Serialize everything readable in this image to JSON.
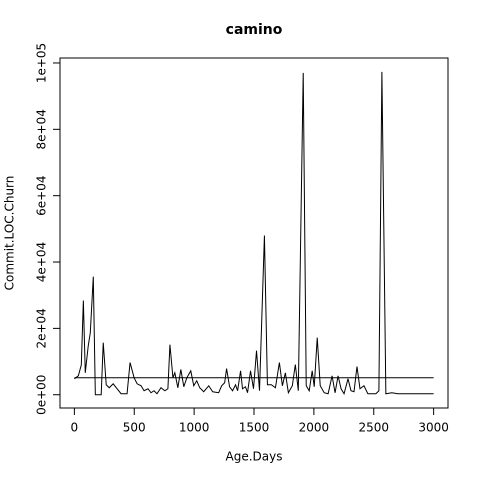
{
  "chart_data": {
    "type": "line",
    "title": "camino",
    "xlabel": "Age.Days",
    "ylabel": "Commit.LOC.Churn",
    "x": [
      0,
      33,
      58,
      75,
      91,
      116,
      133,
      158,
      175,
      224,
      241,
      266,
      291,
      324,
      357,
      390,
      440,
      465,
      499,
      524,
      557,
      582,
      615,
      640,
      665,
      690,
      723,
      756,
      781,
      798,
      823,
      839,
      864,
      889,
      914,
      939,
      972,
      997,
      1022,
      1047,
      1080,
      1122,
      1155,
      1205,
      1230,
      1255,
      1271,
      1296,
      1321,
      1346,
      1363,
      1388,
      1404,
      1429,
      1446,
      1471,
      1496,
      1521,
      1546,
      1587,
      1612,
      1645,
      1679,
      1712,
      1737,
      1762,
      1787,
      1820,
      1845,
      1870,
      1911,
      1936,
      1961,
      1986,
      2003,
      2028,
      2053,
      2086,
      2119,
      2152,
      2177,
      2202,
      2227,
      2252,
      2285,
      2310,
      2335,
      2360,
      2385,
      2418,
      2451,
      2518,
      2543,
      2568,
      2601,
      2651,
      2701,
      3000
    ],
    "series": [
      {
        "name": "Commit.LOC.Churn",
        "color": "#000000",
        "values": [
          4800,
          5700,
          9000,
          28400,
          6600,
          14800,
          18700,
          35600,
          0,
          0,
          15700,
          3000,
          2100,
          3300,
          1800,
          300,
          300,
          9700,
          5100,
          3300,
          2700,
          1200,
          1800,
          600,
          1200,
          300,
          2100,
          1200,
          1800,
          15100,
          5100,
          6600,
          2100,
          7600,
          2400,
          5100,
          7200,
          2700,
          4200,
          2100,
          900,
          2700,
          900,
          600,
          2700,
          3600,
          7900,
          2400,
          1200,
          3000,
          1200,
          7200,
          1800,
          2400,
          600,
          7200,
          1800,
          13300,
          1200,
          48000,
          3000,
          3000,
          2100,
          9700,
          2700,
          6600,
          600,
          2700,
          9100,
          1200,
          97000,
          2700,
          1200,
          7200,
          2400,
          17200,
          2700,
          600,
          300,
          5700,
          600,
          5700,
          1800,
          300,
          4800,
          1200,
          900,
          8500,
          1800,
          2700,
          300,
          300,
          1200,
          97300,
          300,
          600,
          300,
          300
        ]
      }
    ],
    "hline": 5100,
    "xlim": [
      -120,
      3120
    ],
    "xticks": [
      0,
      500,
      1000,
      1500,
      2000,
      2500,
      3000
    ],
    "ylim": [
      -4000,
      101500
    ],
    "yticks": [
      {
        "value": 0,
        "label": "0e+00"
      },
      {
        "value": 20000,
        "label": "2e+04"
      },
      {
        "value": 40000,
        "label": "4e+04"
      },
      {
        "value": 60000,
        "label": "6e+04"
      },
      {
        "value": 80000,
        "label": "8e+04"
      },
      {
        "value": 100000,
        "label": "1e+05"
      }
    ]
  }
}
